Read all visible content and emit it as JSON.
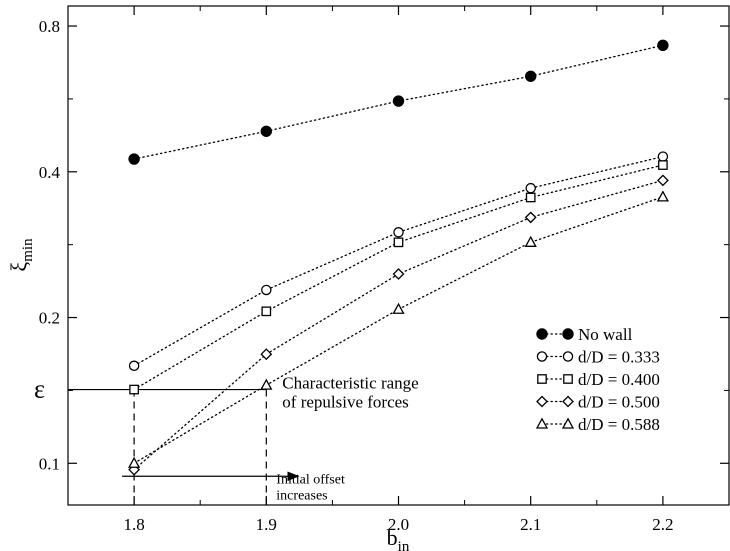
{
  "chart_data": {
    "type": "line",
    "xlabel": "b",
    "xlabel_sub": "in",
    "ylabel": "ξ",
    "ylabel_sub": "min",
    "y_scale": "log",
    "xlim": [
      1.75,
      2.25
    ],
    "ylim": [
      0.082,
      0.88
    ],
    "xticks": [
      1.8,
      1.9,
      2.0,
      2.1,
      2.2
    ],
    "xtick_labels": [
      "1.8",
      "1.9",
      "2.0",
      "2.1",
      "2.2"
    ],
    "yticks": [
      0.1,
      0.2,
      0.4,
      0.8
    ],
    "ytick_labels": [
      "0.1",
      "0.2",
      "0.4",
      "0.8"
    ],
    "grid": false,
    "legend_position": "bottom-right",
    "series": [
      {
        "name": "No wall",
        "marker": "filled-circle",
        "x": [
          1.8,
          1.9,
          2.0,
          2.1,
          2.2
        ],
        "y": [
          0.425,
          0.485,
          0.56,
          0.63,
          0.73
        ]
      },
      {
        "name": "d/D = 0.333",
        "marker": "open-circle",
        "x": [
          1.8,
          1.9,
          2.0,
          2.1,
          2.2
        ],
        "y": [
          0.159,
          0.228,
          0.3,
          0.37,
          0.43
        ]
      },
      {
        "name": "d/D = 0.400",
        "marker": "open-square",
        "x": [
          1.8,
          1.9,
          2.0,
          2.1,
          2.2
        ],
        "y": [
          0.142,
          0.206,
          0.286,
          0.354,
          0.413
        ]
      },
      {
        "name": "d/D = 0.500",
        "marker": "open-diamond",
        "x": [
          1.8,
          1.9,
          2.0,
          2.1,
          2.2
        ],
        "y": [
          0.097,
          0.168,
          0.246,
          0.322,
          0.384
        ]
      },
      {
        "name": "d/D = 0.588",
        "marker": "open-triangle",
        "x": [
          1.8,
          1.9,
          2.0,
          2.1,
          2.2
        ],
        "y": [
          0.1,
          0.145,
          0.208,
          0.286,
          0.355
        ]
      }
    ],
    "annotations": {
      "epsilon_label": "ε",
      "epsilon_value": 0.142,
      "range_text_line1": "Characteristic range",
      "range_text_line2": "of repulsive forces",
      "offset_text_line1": "Initial offset",
      "offset_text_line2": "increases",
      "offset_arrow_y": 0.094,
      "vline_x": [
        1.8,
        1.9
      ]
    }
  }
}
